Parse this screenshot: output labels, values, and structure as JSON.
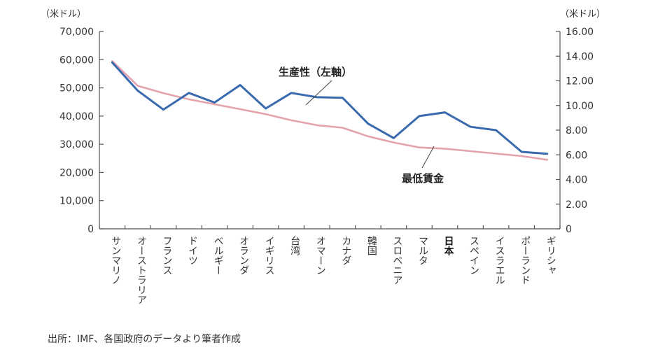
{
  "chart_data": {
    "type": "line",
    "title": "",
    "categories": [
      "サンマリノ",
      "オーストラリア",
      "フランス",
      "ドイツ",
      "ベルギー",
      "オランダ",
      "イギリス",
      "台湾",
      "オマーン",
      "カナダ",
      "韓国",
      "スロベニア",
      "マルタ",
      "日本",
      "スペイン",
      "イスラエル",
      "ポーランド",
      "ギリシャ"
    ],
    "highlight_category": "日本",
    "y_left": {
      "unit": "（米ドル）",
      "ylim": [
        0,
        70000
      ],
      "ticks": [
        "70,000",
        "60,000",
        "50,000",
        "40,000",
        "30,000",
        "20,000",
        "10,000",
        "0"
      ],
      "tick_values": [
        70000,
        60000,
        50000,
        40000,
        30000,
        20000,
        10000,
        0
      ]
    },
    "y_right": {
      "unit": "（米ドル）",
      "ylim": [
        0,
        16
      ],
      "ticks": [
        "16.00",
        "14.00",
        "12.00",
        "10.00",
        "8.00",
        "6.00",
        "4.00",
        "2.00",
        "0"
      ],
      "tick_values": [
        16,
        14,
        12,
        10,
        8,
        6,
        4,
        2,
        0
      ]
    },
    "series": [
      {
        "name": "生産性（左軸）",
        "axis": "left",
        "color": "#3a6aae",
        "values": [
          59000,
          49000,
          42300,
          48200,
          44800,
          51000,
          42700,
          48200,
          46700,
          46500,
          37300,
          32200,
          40000,
          41300,
          36200,
          35000,
          27300,
          26600
        ]
      },
      {
        "name": "最低賃金",
        "axis": "right",
        "color": "#e3a3ab",
        "values": [
          13.6,
          11.6,
          11.0,
          10.5,
          10.1,
          9.7,
          9.3,
          8.8,
          8.4,
          8.2,
          7.5,
          7.0,
          6.6,
          6.5,
          6.3,
          6.1,
          5.9,
          5.6
        ]
      }
    ],
    "grid": false
  },
  "annotations": {
    "productivity": "生産性（左軸）",
    "min_wage": "最低賃金"
  },
  "source": "出所：IMF、各国政府のデータより筆者作成"
}
